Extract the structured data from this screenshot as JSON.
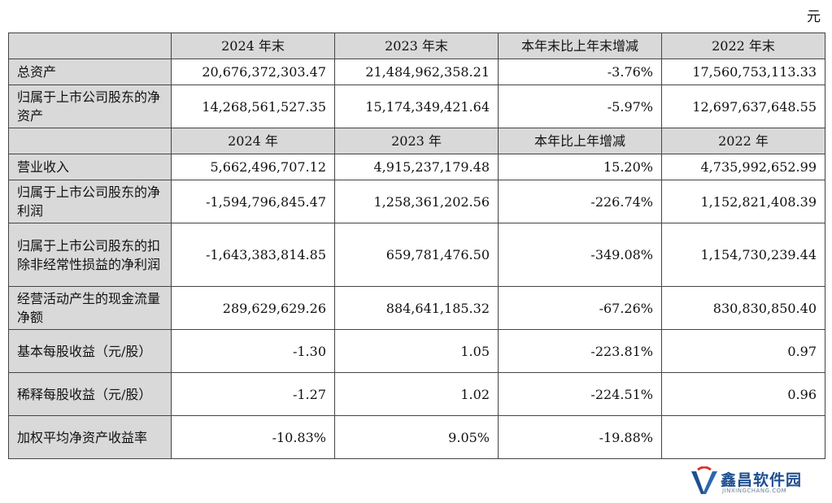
{
  "unit_label": "元",
  "header1": [
    "",
    "2024 年末",
    "2023 年末",
    "本年末比上年末增减",
    "2022 年末"
  ],
  "header2": [
    "",
    "2024 年",
    "2023 年",
    "本年比上年增减",
    "2022 年"
  ],
  "rows_a": [
    {
      "label": "总资产",
      "v2024": "20,676,372,303.47",
      "v2023": "21,484,962,358.21",
      "change": "-3.76%",
      "v2022": "17,560,753,113.33"
    },
    {
      "label": "归属于上市公司股东的净资产",
      "v2024": "14,268,561,527.35",
      "v2023": "15,174,349,421.64",
      "change": "-5.97%",
      "v2022": "12,697,637,648.55"
    }
  ],
  "rows_b": [
    {
      "label": "营业收入",
      "v2024": "5,662,496,707.12",
      "v2023": "4,915,237,179.48",
      "change": "15.20%",
      "v2022": "4,735,992,652.99"
    },
    {
      "label": "归属于上市公司股东的净利润",
      "v2024": "-1,594,796,845.47",
      "v2023": "1,258,361,202.56",
      "change": "-226.74%",
      "v2022": "1,152,821,408.39"
    },
    {
      "label": "归属于上市公司股东的扣除非经常性损益的净利润",
      "v2024": "-1,643,383,814.85",
      "v2023": "659,781,476.50",
      "change": "-349.08%",
      "v2022": "1,154,730,239.44"
    },
    {
      "label": "经营活动产生的现金流量净额",
      "v2024": "289,629,629.26",
      "v2023": "884,641,185.32",
      "change": "-67.26%",
      "v2022": "830,830,850.40"
    },
    {
      "label": "基本每股收益（元/股）",
      "v2024": "-1.30",
      "v2023": "1.05",
      "change": "-223.81%",
      "v2022": "0.97"
    },
    {
      "label": "稀释每股收益（元/股）",
      "v2024": "-1.27",
      "v2023": "1.02",
      "change": "-224.51%",
      "v2022": "0.96"
    },
    {
      "label": "加权平均净资产收益率",
      "v2024": "-10.83%",
      "v2023": "9.05%",
      "change": "-19.88%",
      "v2022": ""
    }
  ],
  "watermark": {
    "title": "鑫昌软件园",
    "subtitle": "JINXINGCHANG.COM",
    "color": "#1e4f8f"
  }
}
